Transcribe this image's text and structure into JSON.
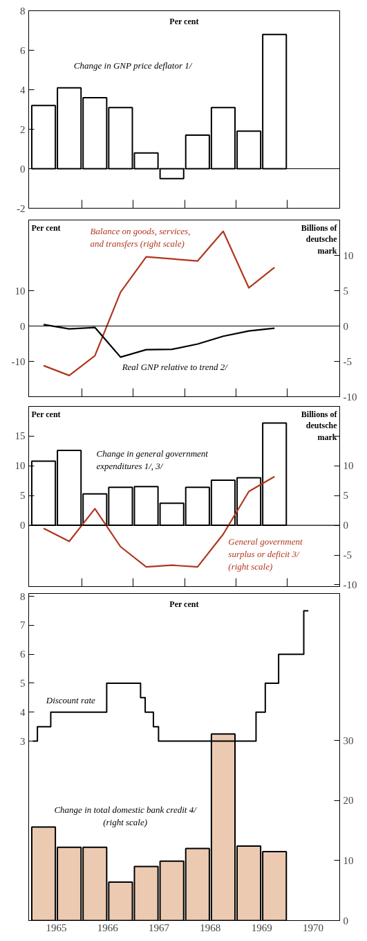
{
  "chart_data": [
    {
      "type": "bar",
      "ylabel": "Per cent",
      "x": [
        1965.25,
        1965.75,
        1966.25,
        1966.75,
        1967.25,
        1967.75,
        1968.25,
        1968.75,
        1969.25,
        1969.75
      ],
      "xlim": [
        1964.96,
        1971.02
      ],
      "xticks": [
        {
          "value": 1966,
          "label": null
        },
        {
          "value": 1967,
          "label": null
        },
        {
          "value": 1968,
          "label": null
        },
        {
          "value": 1969,
          "label": null
        },
        {
          "value": 1970,
          "label": null
        }
      ],
      "ylim": [
        -2,
        8
      ],
      "yticks": [
        -2,
        0,
        2,
        4,
        6,
        8
      ],
      "tick_labels": "y",
      "ref_lines": [
        {
          "axis": "y",
          "value": 0,
          "color": "#000000"
        }
      ],
      "series": [
        {
          "name": "Change in GNP price deflator 1/",
          "color": "#ffffff",
          "values": [
            3.2,
            4.1,
            3.6,
            3.1,
            0.8,
            -0.5,
            1.7,
            3.1,
            1.9,
            6.8
          ]
        }
      ]
    },
    {
      "type": "line",
      "ylabel": "Per cent",
      "y2label": "Billions of deutsche mark",
      "x": [
        1965.25,
        1965.75,
        1966.25,
        1966.75,
        1967.25,
        1967.75,
        1968.25,
        1968.75,
        1969.25,
        1969.75
      ],
      "xlim": [
        1964.96,
        1971.02
      ],
      "xticks": [
        {
          "value": 1966,
          "label": null
        },
        {
          "value": 1967,
          "label": null
        },
        {
          "value": 1968,
          "label": null
        },
        {
          "value": 1969,
          "label": null
        },
        {
          "value": 1970,
          "label": null
        }
      ],
      "ylim": [
        -20,
        30
      ],
      "yticks": [
        -10,
        0,
        10
      ],
      "y2lim": [
        -10,
        15
      ],
      "y2ticks": [
        -10,
        -5,
        0,
        5,
        10
      ],
      "tick_labels": "y",
      "ref_lines": [
        {
          "axis": "y",
          "value": 0,
          "color": "#000000"
        }
      ],
      "series": [
        {
          "name": "Balance on goods, services, and transfers (right scale)",
          "color": "#b0361e",
          "axis": "y2",
          "x": [
            1965.25,
            1965.75,
            1966.25,
            1966.75,
            1967.25,
            1968.25,
            1968.75,
            1969.25,
            1969.75
          ],
          "values": [
            -5.6,
            -7.0,
            -4.2,
            4.8,
            9.8,
            9.2,
            13.4,
            5.4,
            8.3
          ]
        },
        {
          "name": "Real GNP relative to trend 2/",
          "color": "#000000",
          "values": [
            0.4,
            -0.8,
            -0.4,
            -8.8,
            -6.7,
            -6.6,
            -5.1,
            -2.9,
            -1.4,
            -0.6
          ]
        }
      ]
    },
    {
      "type": "bar",
      "ylabel": "Per cent",
      "y2label": "Billions of deutsche mark",
      "x": [
        1965.25,
        1965.75,
        1966.25,
        1966.75,
        1967.25,
        1967.75,
        1968.25,
        1968.75,
        1969.25,
        1969.75
      ],
      "xlim": [
        1964.96,
        1971.02
      ],
      "xticks": [
        {
          "value": 1966,
          "label": null
        },
        {
          "value": 1967,
          "label": null
        },
        {
          "value": 1968,
          "label": null
        },
        {
          "value": 1969,
          "label": null
        },
        {
          "value": 1970,
          "label": null
        }
      ],
      "ylim": [
        -10.3,
        20
      ],
      "yticks": [
        0,
        5,
        10,
        15
      ],
      "y2lim": [
        -10.3,
        20
      ],
      "y2ticks": [
        {
          "value": 15,
          "label": null
        },
        10,
        5,
        0,
        -5,
        -10
      ],
      "tick_labels": "y",
      "ref_lines": [
        {
          "axis": "y",
          "value": 0,
          "color": "#000000"
        }
      ],
      "series": [
        {
          "name": "Change in general government expenditures 1/, 3/",
          "color": "#ffffff",
          "values": [
            10.8,
            12.6,
            5.3,
            6.4,
            6.5,
            3.7,
            6.4,
            7.6,
            8.0,
            17.2
          ]
        },
        {
          "type": "line",
          "axis": "y2",
          "name": "General government surplus or deficit 3/ (right scale)",
          "color": "#b0361e",
          "values": [
            -0.5,
            -2.7,
            2.8,
            -3.6,
            -7.0,
            -6.7,
            -7.0,
            -1.5,
            5.7,
            8.2
          ]
        }
      ]
    },
    {
      "type": "bar",
      "ylabel": "Per cent",
      "x": [
        1965.25,
        1965.75,
        1966.25,
        1966.75,
        1967.25,
        1967.75,
        1968.25,
        1968.75,
        1969.25,
        1969.75
      ],
      "xlim": [
        1964.96,
        1971.02
      ],
      "xticks": [
        {
          "value": 1965.5,
          "label": "1965"
        },
        {
          "value": 1966.5,
          "label": "1966"
        },
        {
          "value": 1967.5,
          "label": "1967"
        },
        {
          "value": 1968.5,
          "label": "1968"
        },
        {
          "value": 1969.5,
          "label": "1969"
        },
        {
          "value": 1970.5,
          "label": "1970"
        }
      ],
      "ylim": [
        -3.2,
        8.1
      ],
      "yticks": [
        3,
        4,
        5,
        6,
        7,
        8
      ],
      "y2lim": [
        0,
        54.5
      ],
      "y2ticks": [
        0,
        10,
        20,
        30
      ],
      "series": [
        {
          "name": "Change in total domestic bank credit 4/ (right scale)",
          "color": "#eccab2",
          "axis": "y2",
          "values": [
            15.6,
            12.2,
            12.2,
            6.4,
            9.0,
            9.9,
            12.0,
            31.1,
            12.4,
            11.5
          ]
        },
        {
          "type": "step",
          "name": "Discount rate",
          "color": "#000000",
          "x": [
            1965.04,
            1965.13,
            1965.39,
            1966.48,
            1967.14,
            1967.23,
            1967.39,
            1967.49,
            1969.39,
            1969.57,
            1969.83,
            1970.32,
            1970.41
          ],
          "values": [
            3,
            3.5,
            4,
            5,
            4.5,
            4,
            3.5,
            3,
            4,
            5,
            6,
            7.5,
            7.5
          ]
        }
      ]
    }
  ]
}
